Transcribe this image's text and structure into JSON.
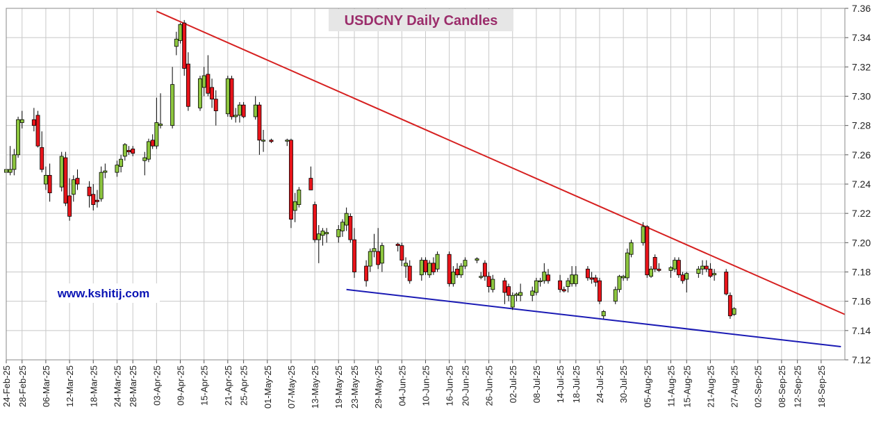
{
  "chart_data": {
    "type": "candlestick",
    "title": "USDCNY Daily Candles",
    "watermark": "www.kshitij.com",
    "ylim": [
      7.12,
      7.36
    ],
    "yticks": [
      "7.12",
      "7.14",
      "7.16",
      "7.18",
      "7.20",
      "7.22",
      "7.24",
      "7.26",
      "7.28",
      "7.30",
      "7.32",
      "7.34",
      "7.36"
    ],
    "xlim": [
      "2025-02-24",
      "2025-09-24"
    ],
    "xticks": [
      "24-Feb-25",
      "28-Feb-25",
      "06-Mar-25",
      "12-Mar-25",
      "18-Mar-25",
      "24-Mar-25",
      "28-Mar-25",
      "03-Apr-25",
      "09-Apr-25",
      "15-Apr-25",
      "21-Apr-25",
      "25-Apr-25",
      "01-May-25",
      "07-May-25",
      "13-May-25",
      "19-May-25",
      "23-May-25",
      "29-May-25",
      "04-Jun-25",
      "10-Jun-25",
      "16-Jun-25",
      "20-Jun-25",
      "26-Jun-25",
      "02-Jul-25",
      "08-Jul-25",
      "14-Jul-25",
      "18-Jul-25",
      "24-Jul-25",
      "30-Jul-25",
      "05-Aug-25",
      "11-Aug-25",
      "15-Aug-25",
      "21-Aug-25",
      "27-Aug-25",
      "02-Sep-25",
      "08-Sep-25",
      "12-Sep-25",
      "18-Sep-25"
    ],
    "colors": {
      "up": "#8dc63f",
      "down": "#e8141a",
      "resistance": "#d62020",
      "support": "#1a1ab4",
      "grid": "#c8c8c8"
    },
    "trendlines": [
      {
        "name": "resistance",
        "from": [
          "2025-04-03",
          7.358
        ],
        "to": [
          "2025-09-24",
          7.151
        ]
      },
      {
        "name": "support",
        "from": [
          "2025-05-21",
          7.168
        ],
        "to": [
          "2025-09-23",
          7.129
        ]
      }
    ],
    "candles": [
      {
        "d": "2025-02-24",
        "o": 7.248,
        "h": 7.252,
        "l": 7.228,
        "c": 7.25
      },
      {
        "d": "2025-02-25",
        "o": 7.248,
        "h": 7.266,
        "l": 7.246,
        "c": 7.25
      },
      {
        "d": "2025-02-26",
        "o": 7.25,
        "h": 7.264,
        "l": 7.246,
        "c": 7.26
      },
      {
        "d": "2025-02-27",
        "o": 7.26,
        "h": 7.286,
        "l": 7.258,
        "c": 7.284
      },
      {
        "d": "2025-02-28",
        "o": 7.282,
        "h": 7.29,
        "l": 7.278,
        "c": 7.284
      },
      {
        "d": "2025-03-03",
        "o": 7.284,
        "h": 7.292,
        "l": 7.276,
        "c": 7.28
      },
      {
        "d": "2025-03-04",
        "o": 7.287,
        "h": 7.29,
        "l": 7.265,
        "c": 7.266
      },
      {
        "d": "2025-03-05",
        "o": 7.265,
        "h": 7.276,
        "l": 7.248,
        "c": 7.25
      },
      {
        "d": "2025-03-06",
        "o": 7.24,
        "h": 7.252,
        "l": 7.236,
        "c": 7.246
      },
      {
        "d": "2025-03-07",
        "o": 7.246,
        "h": 7.254,
        "l": 7.228,
        "c": 7.234
      },
      {
        "d": "2025-03-10",
        "o": 7.238,
        "h": 7.262,
        "l": 7.235,
        "c": 7.259
      },
      {
        "d": "2025-03-11",
        "o": 7.258,
        "h": 7.262,
        "l": 7.225,
        "c": 7.227
      },
      {
        "d": "2025-03-12",
        "o": 7.232,
        "h": 7.244,
        "l": 7.215,
        "c": 7.218
      },
      {
        "d": "2025-03-13",
        "o": 7.233,
        "h": 7.246,
        "l": 7.228,
        "c": 7.243
      },
      {
        "d": "2025-03-14",
        "o": 7.244,
        "h": 7.25,
        "l": 7.236,
        "c": 7.24
      },
      {
        "d": "2025-03-17",
        "o": 7.238,
        "h": 7.242,
        "l": 7.224,
        "c": 7.232
      },
      {
        "d": "2025-03-18",
        "o": 7.233,
        "h": 7.24,
        "l": 7.222,
        "c": 7.226
      },
      {
        "d": "2025-03-19",
        "o": 7.229,
        "h": 7.236,
        "l": 7.224,
        "c": 7.228
      },
      {
        "d": "2025-03-20",
        "o": 7.23,
        "h": 7.252,
        "l": 7.228,
        "c": 7.248
      },
      {
        "d": "2025-03-21",
        "o": 7.248,
        "h": 7.254,
        "l": 7.244,
        "c": 7.249
      },
      {
        "d": "2025-03-24",
        "o": 7.248,
        "h": 7.256,
        "l": 7.245,
        "c": 7.253
      },
      {
        "d": "2025-03-25",
        "o": 7.252,
        "h": 7.26,
        "l": 7.248,
        "c": 7.257
      },
      {
        "d": "2025-03-26",
        "o": 7.259,
        "h": 7.268,
        "l": 7.256,
        "c": 7.267
      },
      {
        "d": "2025-03-27",
        "o": 7.263,
        "h": 7.266,
        "l": 7.26,
        "c": 7.262
      },
      {
        "d": "2025-03-28",
        "o": 7.264,
        "h": 7.266,
        "l": 7.259,
        "c": 7.261
      },
      {
        "d": "2025-03-31",
        "o": 7.256,
        "h": 7.262,
        "l": 7.246,
        "c": 7.258
      },
      {
        "d": "2025-04-01",
        "o": 7.257,
        "h": 7.271,
        "l": 7.255,
        "c": 7.269
      },
      {
        "d": "2025-04-02",
        "o": 7.27,
        "h": 7.274,
        "l": 7.264,
        "c": 7.266
      },
      {
        "d": "2025-04-03",
        "o": 7.266,
        "h": 7.299,
        "l": 7.264,
        "c": 7.282
      },
      {
        "d": "2025-04-04",
        "o": 7.28,
        "h": 7.302,
        "l": 7.278,
        "c": 7.281
      },
      {
        "d": "2025-04-07",
        "o": 7.28,
        "h": 7.32,
        "l": 7.278,
        "c": 7.308
      },
      {
        "d": "2025-04-08",
        "o": 7.334,
        "h": 7.344,
        "l": 7.328,
        "c": 7.339
      },
      {
        "d": "2025-04-09",
        "o": 7.338,
        "h": 7.35,
        "l": 7.336,
        "c": 7.349
      },
      {
        "d": "2025-04-10",
        "o": 7.35,
        "h": 7.352,
        "l": 7.314,
        "c": 7.319
      },
      {
        "d": "2025-04-11",
        "o": 7.322,
        "h": 7.33,
        "l": 7.29,
        "c": 7.293
      },
      {
        "d": "2025-04-14",
        "o": 7.292,
        "h": 7.314,
        "l": 7.29,
        "c": 7.312
      },
      {
        "d": "2025-04-15",
        "o": 7.306,
        "h": 7.32,
        "l": 7.3,
        "c": 7.314
      },
      {
        "d": "2025-04-16",
        "o": 7.315,
        "h": 7.328,
        "l": 7.3,
        "c": 7.302
      },
      {
        "d": "2025-04-17",
        "o": 7.306,
        "h": 7.312,
        "l": 7.292,
        "c": 7.298
      },
      {
        "d": "2025-04-18",
        "o": 7.298,
        "h": 7.304,
        "l": 7.28,
        "c": 7.29
      },
      {
        "d": "2025-04-21",
        "o": 7.288,
        "h": 7.314,
        "l": 7.286,
        "c": 7.312
      },
      {
        "d": "2025-04-22",
        "o": 7.312,
        "h": 7.314,
        "l": 7.284,
        "c": 7.286
      },
      {
        "d": "2025-04-23",
        "o": 7.286,
        "h": 7.292,
        "l": 7.282,
        "c": 7.287
      },
      {
        "d": "2025-04-24",
        "o": 7.287,
        "h": 7.296,
        "l": 7.282,
        "c": 7.294
      },
      {
        "d": "2025-04-25",
        "o": 7.294,
        "h": 7.296,
        "l": 7.285,
        "c": 7.286
      },
      {
        "d": "2025-04-28",
        "o": 7.286,
        "h": 7.3,
        "l": 7.284,
        "c": 7.294
      },
      {
        "d": "2025-04-29",
        "o": 7.294,
        "h": 7.296,
        "l": 7.26,
        "c": 7.27
      },
      {
        "d": "2025-04-30",
        "o": 7.27,
        "h": 7.277,
        "l": 7.262,
        "c": 7.27
      },
      {
        "d": "2025-05-02",
        "o": 7.27,
        "h": 7.271,
        "l": 7.268,
        "c": 7.269
      },
      {
        "d": "2025-05-06",
        "o": 7.27,
        "h": 7.271,
        "l": 7.266,
        "c": 7.27
      },
      {
        "d": "2025-05-07",
        "o": 7.27,
        "h": 7.271,
        "l": 7.21,
        "c": 7.216
      },
      {
        "d": "2025-05-08",
        "o": 7.222,
        "h": 7.234,
        "l": 7.214,
        "c": 7.228
      },
      {
        "d": "2025-05-09",
        "o": 7.226,
        "h": 7.238,
        "l": 7.224,
        "c": 7.236
      },
      {
        "d": "2025-05-12",
        "o": 7.244,
        "h": 7.252,
        "l": 7.236,
        "c": 7.236
      },
      {
        "d": "2025-05-13",
        "o": 7.226,
        "h": 7.228,
        "l": 7.2,
        "c": 7.202
      },
      {
        "d": "2025-05-14",
        "o": 7.202,
        "h": 7.212,
        "l": 7.186,
        "c": 7.206
      },
      {
        "d": "2025-05-15",
        "o": 7.205,
        "h": 7.21,
        "l": 7.198,
        "c": 7.208
      },
      {
        "d": "2025-05-16",
        "o": 7.206,
        "h": 7.21,
        "l": 7.2,
        "c": 7.207
      },
      {
        "d": "2025-05-19",
        "o": 7.204,
        "h": 7.212,
        "l": 7.2,
        "c": 7.209
      },
      {
        "d": "2025-05-20",
        "o": 7.208,
        "h": 7.216,
        "l": 7.204,
        "c": 7.214
      },
      {
        "d": "2025-05-21",
        "o": 7.212,
        "h": 7.224,
        "l": 7.208,
        "c": 7.22
      },
      {
        "d": "2025-05-22",
        "o": 7.218,
        "h": 7.22,
        "l": 7.2,
        "c": 7.202
      },
      {
        "d": "2025-05-23",
        "o": 7.202,
        "h": 7.21,
        "l": 7.176,
        "c": 7.18
      },
      {
        "d": "2025-05-26",
        "o": 7.184,
        "h": 7.188,
        "l": 7.17,
        "c": 7.174
      },
      {
        "d": "2025-05-27",
        "o": 7.184,
        "h": 7.196,
        "l": 7.18,
        "c": 7.194
      },
      {
        "d": "2025-05-28",
        "o": 7.194,
        "h": 7.206,
        "l": 7.19,
        "c": 7.196
      },
      {
        "d": "2025-05-29",
        "o": 7.194,
        "h": 7.21,
        "l": 7.182,
        "c": 7.185
      },
      {
        "d": "2025-05-30",
        "o": 7.186,
        "h": 7.2,
        "l": 7.18,
        "c": 7.198
      },
      {
        "d": "2025-06-03",
        "o": 7.199,
        "h": 7.2,
        "l": 7.194,
        "c": 7.198
      },
      {
        "d": "2025-06-04",
        "o": 7.198,
        "h": 7.2,
        "l": 7.184,
        "c": 7.188
      },
      {
        "d": "2025-06-05",
        "o": 7.184,
        "h": 7.19,
        "l": 7.176,
        "c": 7.186
      },
      {
        "d": "2025-06-06",
        "o": 7.184,
        "h": 7.188,
        "l": 7.172,
        "c": 7.174
      },
      {
        "d": "2025-06-09",
        "o": 7.178,
        "h": 7.19,
        "l": 7.174,
        "c": 7.188
      },
      {
        "d": "2025-06-10",
        "o": 7.188,
        "h": 7.19,
        "l": 7.178,
        "c": 7.18
      },
      {
        "d": "2025-06-11",
        "o": 7.178,
        "h": 7.188,
        "l": 7.176,
        "c": 7.186
      },
      {
        "d": "2025-06-12",
        "o": 7.186,
        "h": 7.19,
        "l": 7.178,
        "c": 7.18
      },
      {
        "d": "2025-06-13",
        "o": 7.182,
        "h": 7.194,
        "l": 7.18,
        "c": 7.192
      },
      {
        "d": "2025-06-16",
        "o": 7.192,
        "h": 7.194,
        "l": 7.17,
        "c": 7.172
      },
      {
        "d": "2025-06-17",
        "o": 7.172,
        "h": 7.184,
        "l": 7.17,
        "c": 7.18
      },
      {
        "d": "2025-06-18",
        "o": 7.182,
        "h": 7.186,
        "l": 7.176,
        "c": 7.178
      },
      {
        "d": "2025-06-19",
        "o": 7.178,
        "h": 7.186,
        "l": 7.176,
        "c": 7.184
      },
      {
        "d": "2025-06-20",
        "o": 7.184,
        "h": 7.19,
        "l": 7.182,
        "c": 7.188
      },
      {
        "d": "2025-06-23",
        "o": 7.188,
        "h": 7.19,
        "l": 7.186,
        "c": 7.189
      },
      {
        "d": "2025-06-24",
        "o": 7.177,
        "h": 7.18,
        "l": 7.175,
        "c": 7.177
      },
      {
        "d": "2025-06-25",
        "o": 7.186,
        "h": 7.188,
        "l": 7.174,
        "c": 7.177
      },
      {
        "d": "2025-06-26",
        "o": 7.177,
        "h": 7.18,
        "l": 7.166,
        "c": 7.17
      },
      {
        "d": "2025-06-27",
        "o": 7.168,
        "h": 7.178,
        "l": 7.166,
        "c": 7.175
      },
      {
        "d": "2025-06-30",
        "o": 7.174,
        "h": 7.176,
        "l": 7.158,
        "c": 7.166
      },
      {
        "d": "2025-07-01",
        "o": 7.17,
        "h": 7.172,
        "l": 7.16,
        "c": 7.164
      },
      {
        "d": "2025-07-02",
        "o": 7.156,
        "h": 7.166,
        "l": 7.154,
        "c": 7.164
      },
      {
        "d": "2025-07-03",
        "o": 7.164,
        "h": 7.166,
        "l": 7.16,
        "c": 7.165
      },
      {
        "d": "2025-07-04",
        "o": 7.164,
        "h": 7.172,
        "l": 7.16,
        "c": 7.166
      },
      {
        "d": "2025-07-07",
        "o": 7.164,
        "h": 7.17,
        "l": 7.16,
        "c": 7.167
      },
      {
        "d": "2025-07-08",
        "o": 7.166,
        "h": 7.176,
        "l": 7.164,
        "c": 7.174
      },
      {
        "d": "2025-07-09",
        "o": 7.174,
        "h": 7.176,
        "l": 7.17,
        "c": 7.174
      },
      {
        "d": "2025-07-10",
        "o": 7.174,
        "h": 7.186,
        "l": 7.172,
        "c": 7.18
      },
      {
        "d": "2025-07-11",
        "o": 7.178,
        "h": 7.182,
        "l": 7.172,
        "c": 7.174
      },
      {
        "d": "2025-07-14",
        "o": 7.174,
        "h": 7.178,
        "l": 7.166,
        "c": 7.168
      },
      {
        "d": "2025-07-15",
        "o": 7.168,
        "h": 7.17,
        "l": 7.166,
        "c": 7.167
      },
      {
        "d": "2025-07-16",
        "o": 7.17,
        "h": 7.176,
        "l": 7.166,
        "c": 7.174
      },
      {
        "d": "2025-07-17",
        "o": 7.172,
        "h": 7.184,
        "l": 7.17,
        "c": 7.178
      },
      {
        "d": "2025-07-18",
        "o": 7.172,
        "h": 7.184,
        "l": 7.17,
        "c": 7.178
      },
      {
        "d": "2025-07-21",
        "o": 7.182,
        "h": 7.184,
        "l": 7.174,
        "c": 7.176
      },
      {
        "d": "2025-07-22",
        "o": 7.176,
        "h": 7.18,
        "l": 7.172,
        "c": 7.175
      },
      {
        "d": "2025-07-23",
        "o": 7.176,
        "h": 7.178,
        "l": 7.17,
        "c": 7.173
      },
      {
        "d": "2025-07-24",
        "o": 7.174,
        "h": 7.176,
        "l": 7.158,
        "c": 7.16
      },
      {
        "d": "2025-07-25",
        "o": 7.15,
        "h": 7.154,
        "l": 7.148,
        "c": 7.153
      },
      {
        "d": "2025-07-28",
        "o": 7.16,
        "h": 7.17,
        "l": 7.158,
        "c": 7.168
      },
      {
        "d": "2025-07-29",
        "o": 7.168,
        "h": 7.178,
        "l": 7.166,
        "c": 7.177
      },
      {
        "d": "2025-07-30",
        "o": 7.176,
        "h": 7.178,
        "l": 7.174,
        "c": 7.177
      },
      {
        "d": "2025-07-31",
        "o": 7.176,
        "h": 7.196,
        "l": 7.174,
        "c": 7.193
      },
      {
        "d": "2025-08-01",
        "o": 7.192,
        "h": 7.202,
        "l": 7.19,
        "c": 7.2
      },
      {
        "d": "2025-08-04",
        "o": 7.2,
        "h": 7.214,
        "l": 7.198,
        "c": 7.211
      },
      {
        "d": "2025-08-05",
        "o": 7.211,
        "h": 7.212,
        "l": 7.176,
        "c": 7.178
      },
      {
        "d": "2025-08-06",
        "o": 7.177,
        "h": 7.184,
        "l": 7.176,
        "c": 7.182
      },
      {
        "d": "2025-08-07",
        "o": 7.19,
        "h": 7.192,
        "l": 7.18,
        "c": 7.182
      },
      {
        "d": "2025-08-08",
        "o": 7.182,
        "h": 7.186,
        "l": 7.18,
        "c": 7.181
      },
      {
        "d": "2025-08-11",
        "o": 7.181,
        "h": 7.184,
        "l": 7.176,
        "c": 7.183
      },
      {
        "d": "2025-08-12",
        "o": 7.182,
        "h": 7.19,
        "l": 7.18,
        "c": 7.188
      },
      {
        "d": "2025-08-13",
        "o": 7.188,
        "h": 7.19,
        "l": 7.176,
        "c": 7.178
      },
      {
        "d": "2025-08-14",
        "o": 7.178,
        "h": 7.18,
        "l": 7.172,
        "c": 7.174
      },
      {
        "d": "2025-08-15",
        "o": 7.175,
        "h": 7.18,
        "l": 7.166,
        "c": 7.179
      },
      {
        "d": "2025-08-18",
        "o": 7.179,
        "h": 7.184,
        "l": 7.176,
        "c": 7.182
      },
      {
        "d": "2025-08-19",
        "o": 7.182,
        "h": 7.188,
        "l": 7.178,
        "c": 7.184
      },
      {
        "d": "2025-08-20",
        "o": 7.184,
        "h": 7.188,
        "l": 7.18,
        "c": 7.182
      },
      {
        "d": "2025-08-21",
        "o": 7.182,
        "h": 7.186,
        "l": 7.176,
        "c": 7.177
      },
      {
        "d": "2025-08-22",
        "o": 7.178,
        "h": 7.182,
        "l": 7.174,
        "c": 7.179
      },
      {
        "d": "2025-08-25",
        "o": 7.18,
        "h": 7.182,
        "l": 7.164,
        "c": 7.165
      },
      {
        "d": "2025-08-26",
        "o": 7.164,
        "h": 7.166,
        "l": 7.148,
        "c": 7.15
      },
      {
        "d": "2025-08-27",
        "o": 7.151,
        "h": 7.156,
        "l": 7.15,
        "c": 7.155
      }
    ]
  }
}
